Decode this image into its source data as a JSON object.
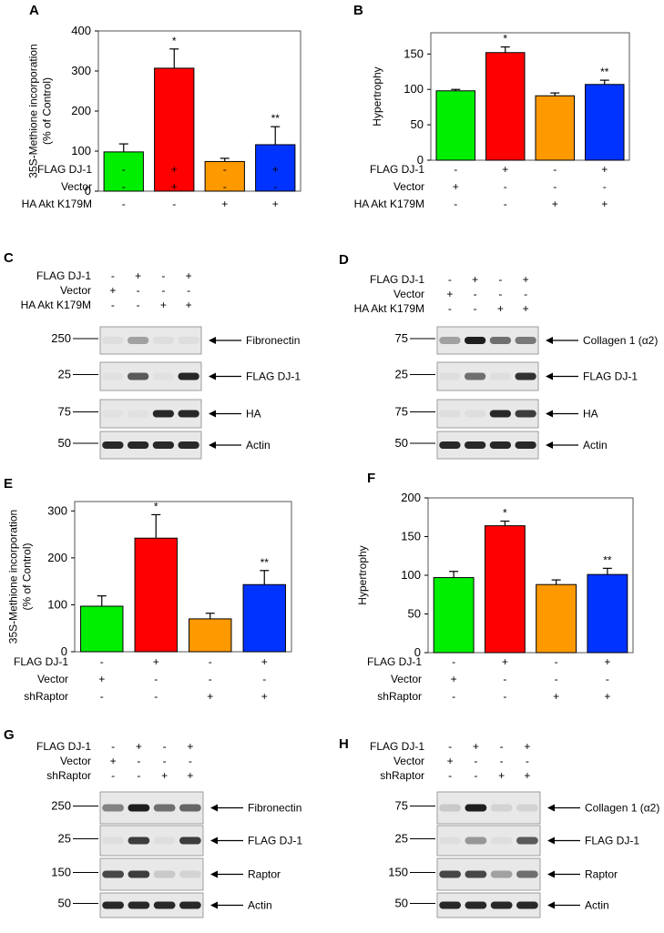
{
  "colors": {
    "bar1": "#00ee00",
    "bar2": "#ff0000",
    "bar3": "#ff9900",
    "bar4": "#0033ff",
    "blot": "#e8e8e8",
    "band": "#1e1e1e"
  },
  "chart_data": [
    {
      "type": "bar",
      "id": "A",
      "panel_label": "A",
      "ylabel_lines": [
        "35S-Methione incorporation",
        "(% of Control)"
      ],
      "ylim": [
        0,
        400
      ],
      "yticks": [
        0,
        100,
        200,
        300,
        400
      ],
      "values": [
        98,
        307,
        74,
        116
      ],
      "errors": [
        20,
        48,
        8,
        45
      ],
      "annotations": [
        "",
        "*",
        "",
        "**"
      ],
      "rows": [
        {
          "label": "FLAG DJ-1",
          "signs": [
            "-",
            "+",
            "-",
            "+"
          ]
        },
        {
          "label": "Vector",
          "signs": [
            "-",
            "+",
            "-",
            "-"
          ]
        },
        {
          "label": "HA Akt K179M",
          "signs": [
            "-",
            "-",
            "+",
            "+"
          ]
        }
      ]
    },
    {
      "type": "bar",
      "id": "B",
      "panel_label": "B",
      "ylabel_lines": [
        "Hypertrophy"
      ],
      "ylim": [
        0,
        180
      ],
      "yticks": [
        0,
        50,
        100,
        150
      ],
      "values": [
        98,
        152,
        91,
        107
      ],
      "errors": [
        2,
        8,
        4,
        6
      ],
      "annotations": [
        "",
        "*",
        "",
        "**"
      ],
      "rows": [
        {
          "label": "FLAG DJ-1",
          "signs": [
            "-",
            "+",
            "-",
            "+"
          ]
        },
        {
          "label": "Vector",
          "signs": [
            "+",
            "-",
            "-",
            "-"
          ]
        },
        {
          "label": "HA Akt K179M",
          "signs": [
            "-",
            "-",
            "+",
            "+"
          ]
        }
      ]
    },
    {
      "type": "bar",
      "id": "E",
      "panel_label": "E",
      "ylabel_lines": [
        "35S-Methione incorporation",
        "(% of Control)"
      ],
      "ylim": [
        0,
        320
      ],
      "yticks": [
        0,
        100,
        200,
        300
      ],
      "values": [
        97,
        242,
        70,
        143
      ],
      "errors": [
        22,
        50,
        12,
        30
      ],
      "annotations": [
        "",
        "*",
        "",
        "**"
      ],
      "rows": [
        {
          "label": "FLAG DJ-1",
          "signs": [
            "-",
            "+",
            "-",
            "+"
          ]
        },
        {
          "label": "Vector",
          "signs": [
            "+",
            "-",
            "-",
            "-"
          ]
        },
        {
          "label": "shRaptor",
          "signs": [
            "-",
            "-",
            "+",
            "+"
          ]
        }
      ]
    },
    {
      "type": "bar",
      "id": "F",
      "panel_label": "F",
      "ylabel_lines": [
        "Hypertrophy"
      ],
      "ylim": [
        0,
        200
      ],
      "yticks": [
        0,
        50,
        100,
        150,
        200
      ],
      "values": [
        97,
        164,
        88,
        101
      ],
      "errors": [
        8,
        6,
        6,
        8
      ],
      "annotations": [
        "",
        "*",
        "",
        "**"
      ],
      "rows": [
        {
          "label": "FLAG DJ-1",
          "signs": [
            "-",
            "+",
            "-",
            "+"
          ]
        },
        {
          "label": "Vector",
          "signs": [
            "+",
            "-",
            "-",
            "-"
          ]
        },
        {
          "label": "shRaptor",
          "signs": [
            "-",
            "-",
            "+",
            "+"
          ]
        }
      ]
    }
  ],
  "blots": [
    {
      "id": "C",
      "panel_label": "C",
      "rows": [
        {
          "label": "FLAG DJ-1",
          "signs": [
            "-",
            "+",
            "-",
            "+"
          ]
        },
        {
          "label": "Vector",
          "signs": [
            "+",
            "-",
            "-",
            "-"
          ]
        },
        {
          "label": "HA Akt K179M",
          "signs": [
            "-",
            "-",
            "+",
            "+"
          ]
        }
      ],
      "strips": [
        {
          "marker": "250",
          "band": "Fibronectin",
          "intensity": [
            0.05,
            0.35,
            0.05,
            0.05
          ]
        },
        {
          "marker": "25",
          "band": "FLAG DJ-1",
          "intensity": [
            0.03,
            0.7,
            0.03,
            0.95
          ]
        },
        {
          "marker": "75",
          "band": "HA",
          "intensity": [
            0.03,
            0.03,
            0.95,
            0.95
          ]
        },
        {
          "marker": "50",
          "band": "Actin",
          "intensity": [
            0.95,
            0.95,
            0.95,
            0.95
          ]
        }
      ]
    },
    {
      "id": "D",
      "panel_label": "D",
      "rows": [
        {
          "label": "FLAG DJ-1",
          "signs": [
            "-",
            "+",
            "-",
            "+"
          ]
        },
        {
          "label": "Vector",
          "signs": [
            "+",
            "-",
            "-",
            "-"
          ]
        },
        {
          "label": "HA Akt K179M",
          "signs": [
            "-",
            "-",
            "+",
            "+"
          ]
        }
      ],
      "strips": [
        {
          "marker": "75",
          "band": "Collagen 1 (α2)",
          "intensity": [
            0.35,
            1.0,
            0.6,
            0.55
          ]
        },
        {
          "marker": "25",
          "band": "FLAG DJ-1",
          "intensity": [
            0.05,
            0.6,
            0.05,
            0.9
          ]
        },
        {
          "marker": "75",
          "band": "HA",
          "intensity": [
            0.05,
            0.05,
            0.95,
            0.85
          ]
        },
        {
          "marker": "50",
          "band": "Actin",
          "intensity": [
            0.95,
            0.95,
            0.95,
            0.95
          ]
        }
      ]
    },
    {
      "id": "G",
      "panel_label": "G",
      "rows": [
        {
          "label": "FLAG DJ-1",
          "signs": [
            "-",
            "+",
            "-",
            "+"
          ]
        },
        {
          "label": "Vector",
          "signs": [
            "+",
            "-",
            "-",
            "-"
          ]
        },
        {
          "label": "shRaptor",
          "signs": [
            "-",
            "-",
            "+",
            "+"
          ]
        }
      ],
      "strips": [
        {
          "marker": "250",
          "band": "Fibronectin",
          "intensity": [
            0.5,
            1.0,
            0.6,
            0.65
          ]
        },
        {
          "marker": "25",
          "band": "FLAG DJ-1",
          "intensity": [
            0.05,
            0.85,
            0.05,
            0.85
          ]
        },
        {
          "marker": "150",
          "band": "Raptor",
          "intensity": [
            0.8,
            0.85,
            0.15,
            0.1
          ]
        },
        {
          "marker": "50",
          "band": "Actin",
          "intensity": [
            0.95,
            0.95,
            0.95,
            0.95
          ]
        }
      ]
    },
    {
      "id": "H",
      "panel_label": "H",
      "rows": [
        {
          "label": "FLAG DJ-1",
          "signs": [
            "-",
            "+",
            "-",
            "+"
          ]
        },
        {
          "label": "Vector",
          "signs": [
            "+",
            "-",
            "-",
            "-"
          ]
        },
        {
          "label": "shRaptor",
          "signs": [
            "-",
            "-",
            "+",
            "+"
          ]
        }
      ],
      "strips": [
        {
          "marker": "75",
          "band": "Collagen 1 (α2)",
          "intensity": [
            0.15,
            1.0,
            0.1,
            0.1
          ]
        },
        {
          "marker": "25",
          "band": "FLAG DJ-1",
          "intensity": [
            0.05,
            0.4,
            0.05,
            0.7
          ]
        },
        {
          "marker": "150",
          "band": "Raptor",
          "intensity": [
            0.8,
            0.8,
            0.35,
            0.6
          ]
        },
        {
          "marker": "50",
          "band": "Actin",
          "intensity": [
            0.95,
            0.95,
            0.95,
            0.95
          ]
        }
      ]
    }
  ]
}
